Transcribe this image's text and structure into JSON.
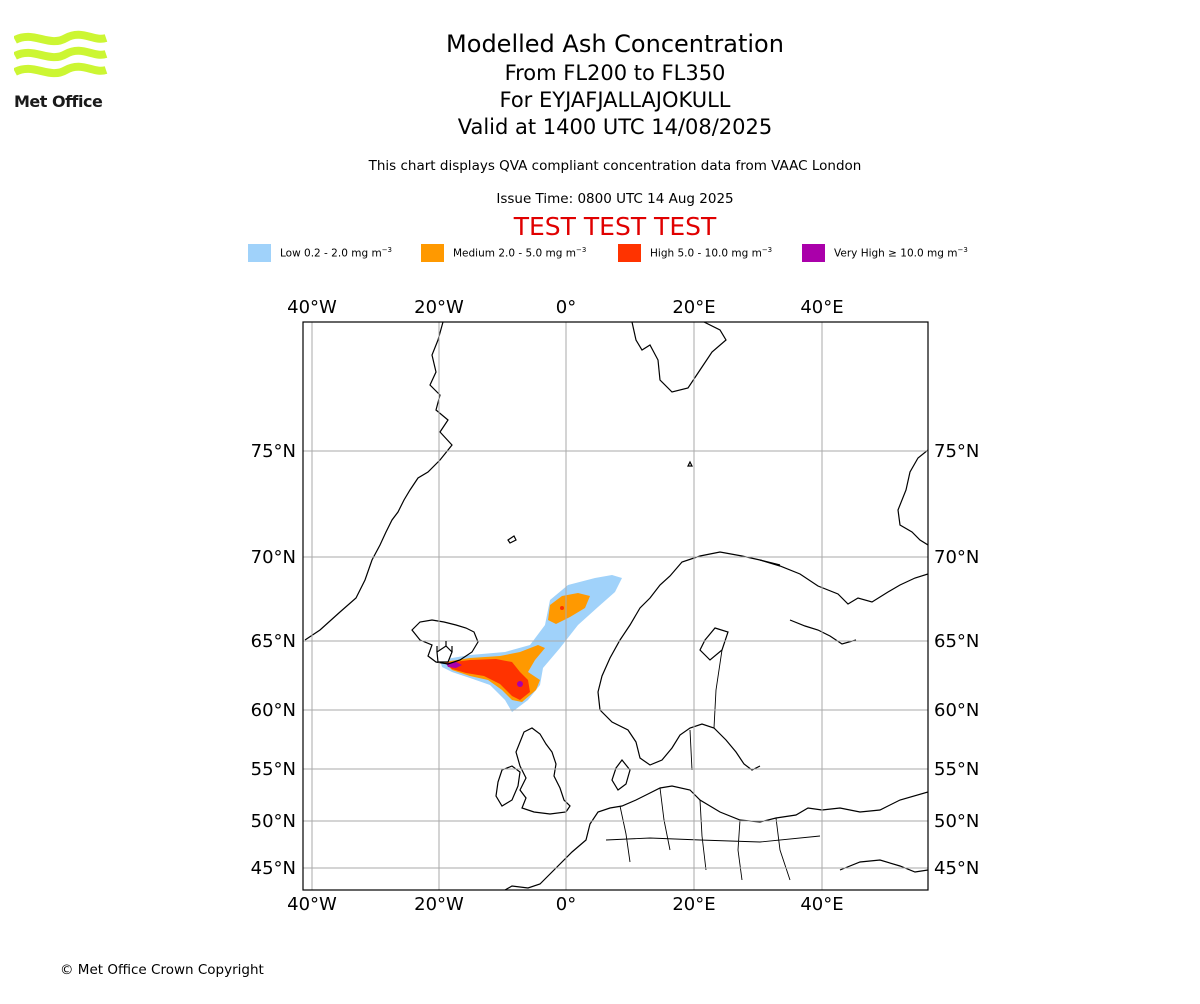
{
  "logo": {
    "text": "Met Office",
    "color": "#ccf633"
  },
  "title": {
    "line1": "Modelled Ash Concentration",
    "line2": "From FL200 to FL350",
    "line3": "For EYJAFJALLAJOKULL",
    "line4": "Valid at 1400 UTC 14/08/2025"
  },
  "subtitle": "This chart displays QVA compliant concentration data from VAAC London",
  "issue_time": "Issue Time: 0800 UTC 14 Aug 2025",
  "test_banner": "TEST TEST TEST",
  "legend": [
    {
      "label": "Low 0.2 - 2.0 mg m",
      "color": "#a0d2fa"
    },
    {
      "label": "Medium 2.0 - 5.0 mg m",
      "color": "#ff9900"
    },
    {
      "label": "High 5.0 - 10.0 mg m",
      "color": "#ff3300"
    },
    {
      "label": "Very High ≥ 10.0 mg m",
      "color": "#aa00aa"
    }
  ],
  "legend_unit_exponent": "−3",
  "map": {
    "lon_ticks": [
      "40°W",
      "20°W",
      "0°",
      "20°E",
      "40°E"
    ],
    "lat_ticks": [
      "75°N",
      "70°N",
      "65°N",
      "60°N",
      "55°N",
      "50°N",
      "45°N"
    ],
    "volcano": "EYJAFJALLAJOKULL"
  },
  "copyright": "© Met Office Crown Copyright"
}
